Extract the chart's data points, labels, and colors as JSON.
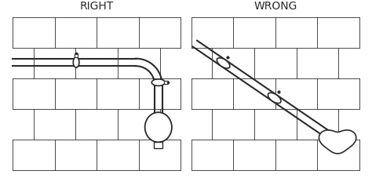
{
  "title_right": "RIGHT",
  "title_wrong": "WRONG",
  "bg_color": "#ffffff",
  "line_color": "#2a2a2a",
  "title_fontsize": 10,
  "fig_width": 4.74,
  "fig_height": 2.27,
  "dpi": 100
}
